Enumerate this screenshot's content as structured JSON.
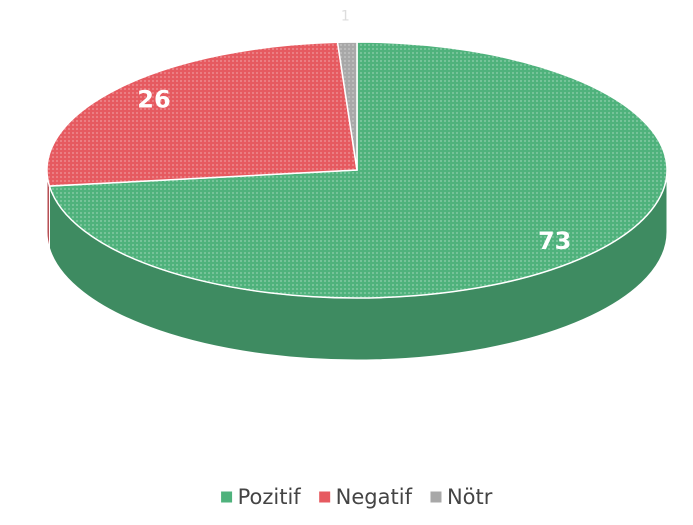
{
  "chart_data": {
    "type": "pie",
    "categories": [
      "Pozitif",
      "Negatif",
      "Nötr"
    ],
    "values": [
      73,
      26,
      1
    ],
    "colors": [
      "#4fb27c",
      "#e65a60",
      "#a8a8a8"
    ]
  }
}
